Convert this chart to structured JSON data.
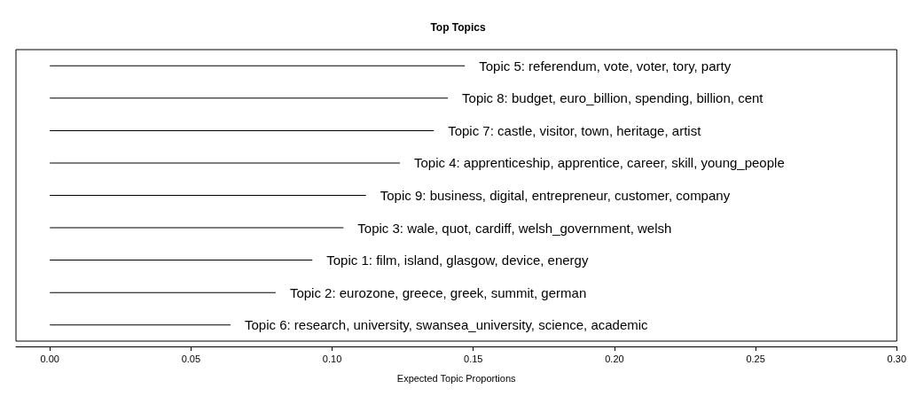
{
  "chart_data": {
    "type": "bar",
    "orientation": "horizontal",
    "title": "Top Topics",
    "xlabel": "Expected Topic Proportions",
    "categories": [
      "Topic 5: referendum, vote, voter, tory, party",
      "Topic 8: budget, euro_billion, spending, billion, cent",
      "Topic 7: castle, visitor, town, heritage, artist",
      "Topic 4: apprenticeship, apprentice, career, skill, young_people",
      "Topic 9: business, digital, entrepreneur, customer, company",
      "Topic 3: wale, quot, cardiff, welsh_government, welsh",
      "Topic 1: film, island, glasgow, device, energy",
      "Topic 2: eurozone, greece, greek, summit, german",
      "Topic 6: research, university, swansea_university, science, academic"
    ],
    "values": [
      0.147,
      0.141,
      0.136,
      0.124,
      0.112,
      0.104,
      0.093,
      0.08,
      0.064
    ],
    "color": "#000000",
    "xlim": [
      -0.012,
      0.3
    ],
    "xticks": [
      {
        "value": 0,
        "label": "0.00"
      },
      {
        "value": 0.05,
        "label": "0.05"
      },
      {
        "value": 0.1,
        "label": "0.10"
      },
      {
        "value": 0.15,
        "label": "0.15"
      },
      {
        "value": 0.2,
        "label": "0.20"
      },
      {
        "value": 0.25,
        "label": "0.25"
      },
      {
        "value": 0.3,
        "label": "0.30"
      }
    ],
    "tick_labels": "x"
  }
}
